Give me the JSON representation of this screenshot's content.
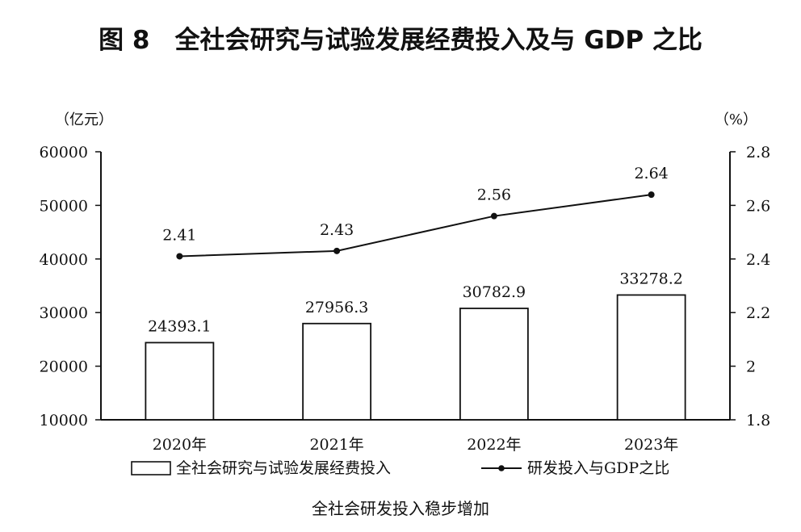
{
  "page": {
    "title": "图 8　全社会研究与试验发展经费投入及与 GDP 之比",
    "caption": "全社会研发投入稳步增加"
  },
  "colors": {
    "text": "#111111",
    "axis": "#111111",
    "bar_fill": "#ffffff",
    "line": "#111111"
  },
  "chart_data": {
    "type": "bar",
    "categories": [
      "2020年",
      "2021年",
      "2022年",
      "2023年"
    ],
    "series": [
      {
        "name": "全社会研究与试验发展经费投入",
        "type": "bar",
        "axis": "left",
        "values": [
          24393.1,
          27956.3,
          30782.9,
          33278.2
        ],
        "labels": [
          "24393.1",
          "27956.3",
          "30782.9",
          "33278.2"
        ]
      },
      {
        "name": "研发投入与GDP之比",
        "type": "line",
        "axis": "right",
        "values": [
          2.41,
          2.43,
          2.56,
          2.64
        ],
        "labels": [
          "2.41",
          "2.43",
          "2.56",
          "2.64"
        ]
      }
    ],
    "y_left": {
      "label": "（亿元）",
      "min": 10000,
      "max": 60000,
      "ticks": [
        10000,
        20000,
        30000,
        40000,
        50000,
        60000
      ],
      "tick_labels": [
        "10000",
        "20000",
        "30000",
        "40000",
        "50000",
        "60000"
      ]
    },
    "y_right": {
      "label": "（%）",
      "min": 1.8,
      "max": 2.8,
      "ticks": [
        1.8,
        2.0,
        2.2,
        2.4,
        2.6,
        2.8
      ],
      "tick_labels": [
        "1.8",
        "2",
        "2.2",
        "2.4",
        "2.6",
        "2.8"
      ]
    },
    "grid": false,
    "legend_position": "bottom"
  }
}
